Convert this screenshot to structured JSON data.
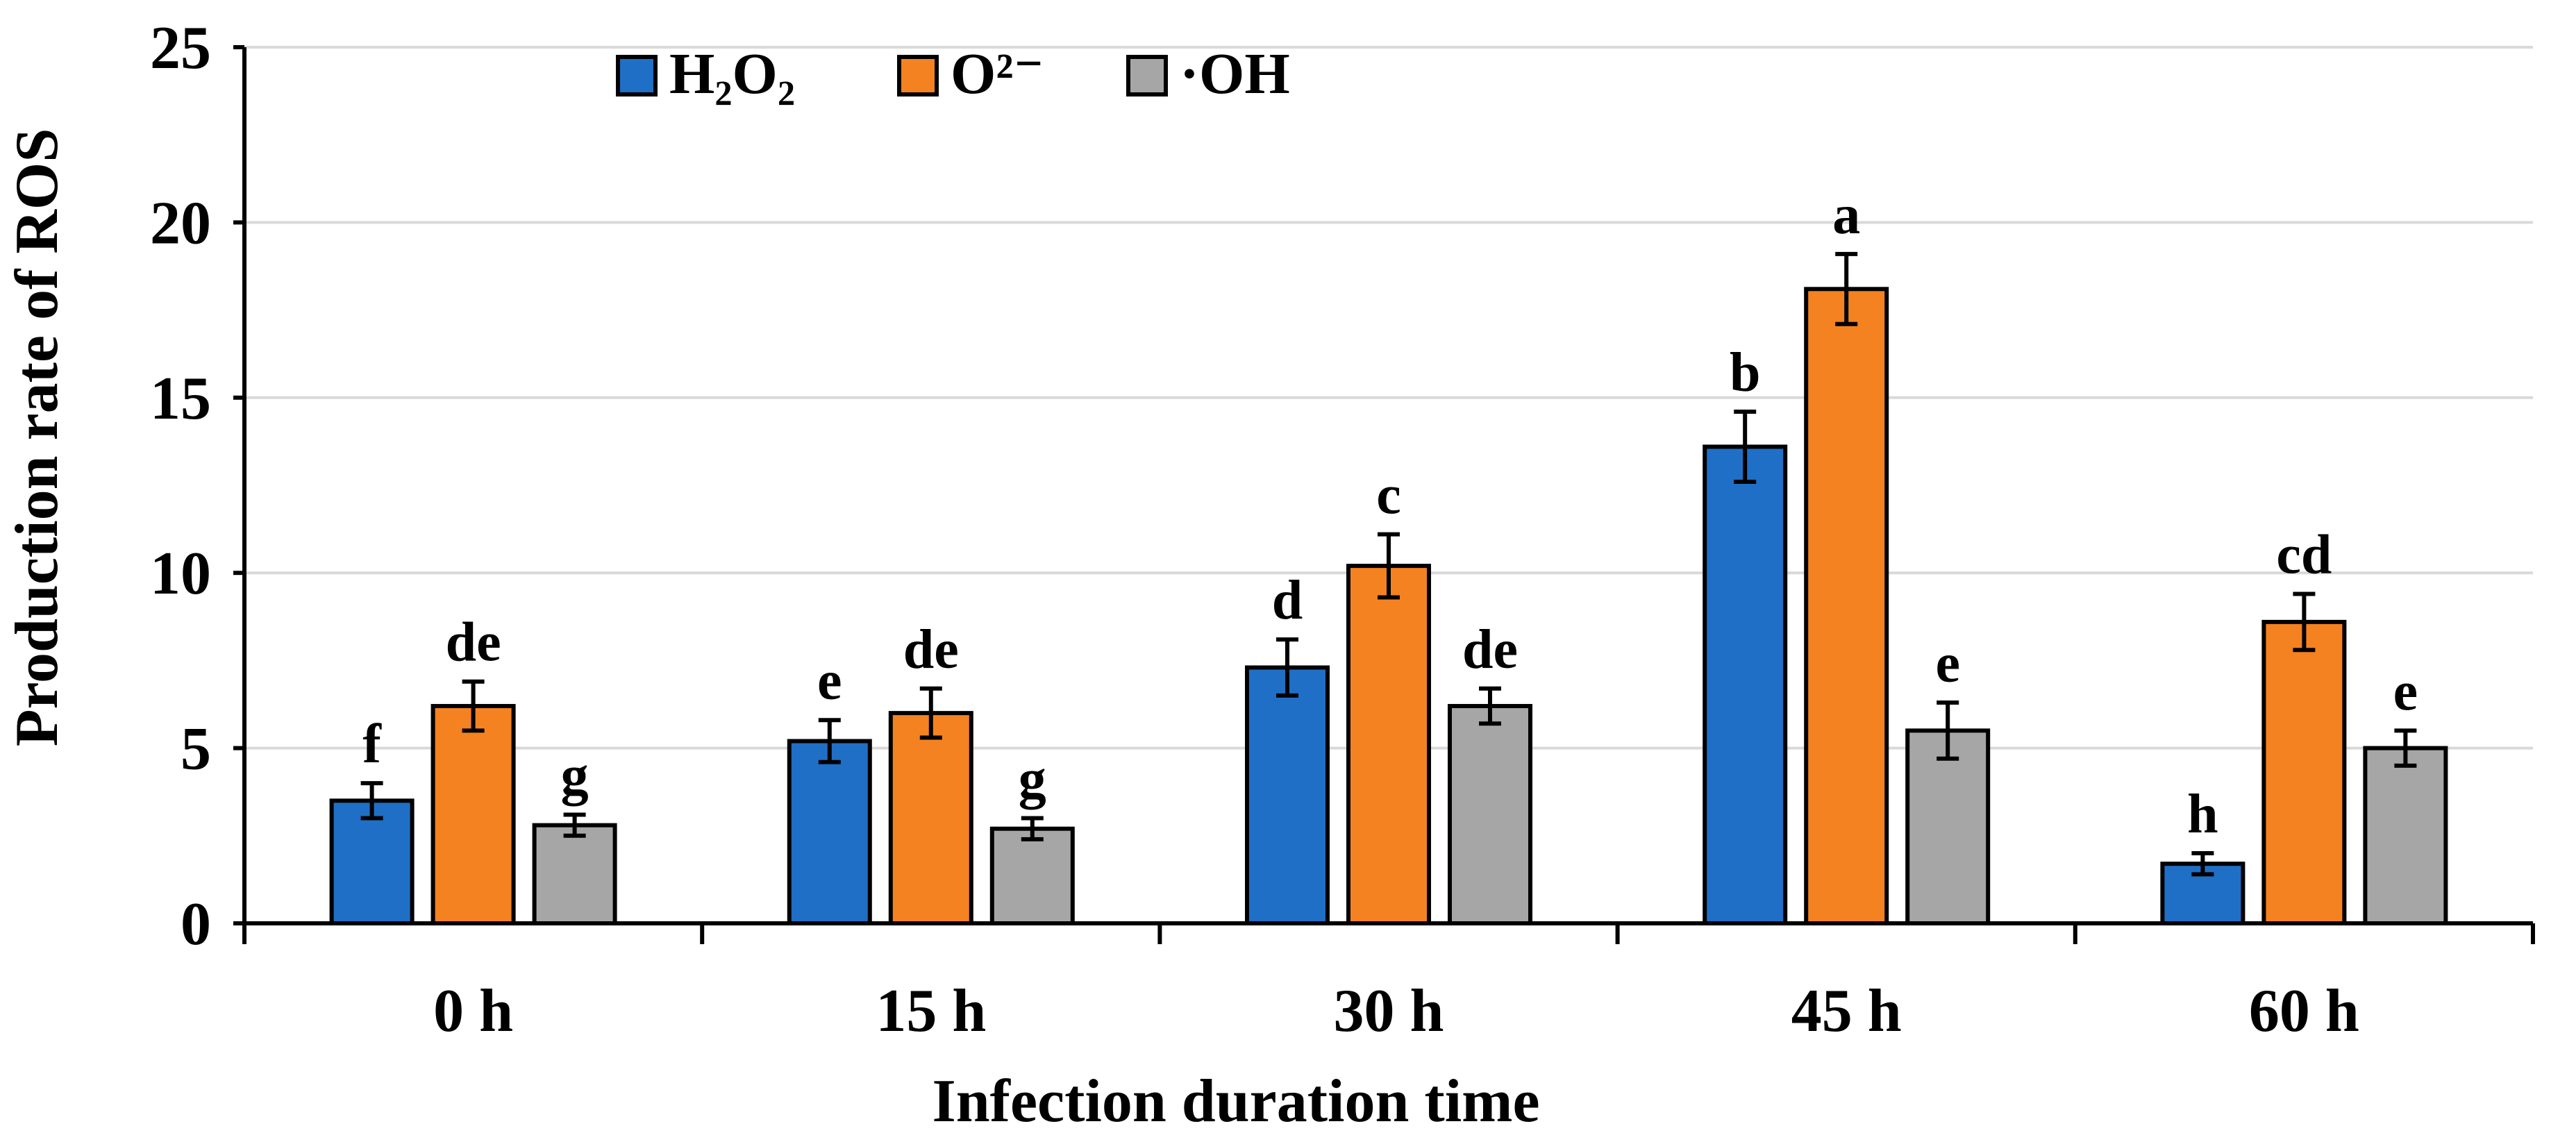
{
  "chart_data": {
    "type": "bar",
    "title": "",
    "xlabel": "Infection duration time",
    "ylabel": "Production rate of ROS",
    "ylim": [
      0,
      25
    ],
    "yticks": [
      "0",
      "5",
      "10",
      "15",
      "20",
      "25"
    ],
    "grid": true,
    "legend_position": "top-left",
    "categories": [
      "0 h",
      "15 h",
      "30 h",
      "45 h",
      "60 h"
    ],
    "series": [
      {
        "name": "H₂O₂",
        "color": "#1f6fc6",
        "values": [
          3.5,
          5.2,
          7.3,
          13.6,
          1.7
        ],
        "errors": [
          0.5,
          0.6,
          0.8,
          1.0,
          0.3
        ],
        "letters": [
          "f",
          "e",
          "d",
          "b",
          "h"
        ]
      },
      {
        "name": "O²⁻",
        "color": "#f58220",
        "values": [
          6.2,
          6.0,
          10.2,
          18.1,
          8.6
        ],
        "errors": [
          0.7,
          0.7,
          0.9,
          1.0,
          0.8
        ],
        "letters": [
          "de",
          "de",
          "c",
          "a",
          "cd"
        ]
      },
      {
        "name": "·OH",
        "color": "#a6a6a6",
        "values": [
          2.8,
          2.7,
          6.2,
          5.5,
          5.0
        ],
        "errors": [
          0.3,
          0.3,
          0.5,
          0.8,
          0.5
        ],
        "letters": [
          "g",
          "g",
          "de",
          "e",
          "e"
        ]
      }
    ]
  }
}
